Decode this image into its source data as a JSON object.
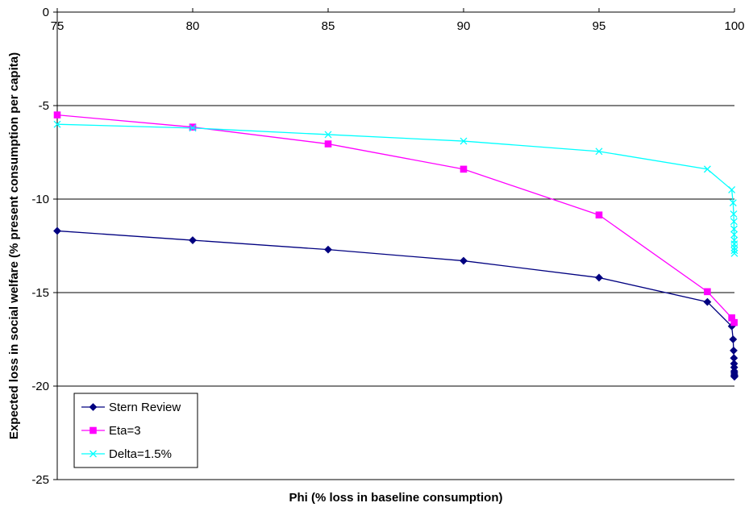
{
  "chart_data": {
    "type": "line",
    "title": "",
    "xlabel": "Phi (% loss in baseline consumption)",
    "ylabel": "Expected loss in social welfare (% present consumption per capita)",
    "xlim": [
      75,
      100
    ],
    "ylim": [
      -25,
      0
    ],
    "x_ticks": [
      75,
      80,
      85,
      90,
      95,
      100
    ],
    "y_ticks": [
      0,
      -5,
      -10,
      -15,
      -20,
      -25
    ],
    "x_axis_position": "top",
    "grid": "horizontal",
    "legend_position": "bottom-left",
    "series": [
      {
        "name": "Stern Review",
        "color": "#000080",
        "marker": "diamond",
        "x": [
          75,
          80,
          85,
          90,
          95,
          99,
          99.9,
          99.95,
          99.97,
          99.98,
          99.985,
          99.99,
          99.993,
          99.995,
          99.997,
          99.998,
          99.999
        ],
        "y": [
          -11.7,
          -12.2,
          -12.7,
          -13.3,
          -14.2,
          -15.5,
          -16.8,
          -17.5,
          -18.1,
          -18.5,
          -18.8,
          -19.0,
          -19.2,
          -19.3,
          -19.4,
          -19.45,
          -19.5
        ]
      },
      {
        "name": "Eta=3",
        "color": "#FF00FF",
        "marker": "square",
        "x": [
          75,
          80,
          85,
          90,
          95,
          99,
          99.9,
          99.99
        ],
        "y": [
          -5.5,
          -6.15,
          -7.05,
          -8.4,
          -10.85,
          -14.95,
          -16.35,
          -16.6
        ]
      },
      {
        "name": "Delta=1.5%",
        "color": "#00FFFF",
        "marker": "x",
        "x": [
          75,
          80,
          85,
          90,
          95,
          99,
          99.9,
          99.95,
          99.97,
          99.98,
          99.985,
          99.99,
          99.993,
          99.995,
          99.997,
          99.998,
          99.999
        ],
        "y": [
          -6.0,
          -6.2,
          -6.55,
          -6.9,
          -7.45,
          -8.4,
          -9.5,
          -10.2,
          -10.8,
          -11.2,
          -11.6,
          -11.9,
          -12.2,
          -12.4,
          -12.6,
          -12.75,
          -12.9
        ]
      }
    ]
  }
}
